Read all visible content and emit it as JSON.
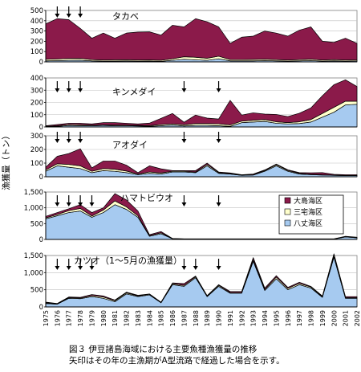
{
  "ylabel": "漁獲量（トン）",
  "years": [
    "1975",
    "1976",
    "1977",
    "1978",
    "1979",
    "1980",
    "1981",
    "1982",
    "1983",
    "1984",
    "1985",
    "1986",
    "1987",
    "1988",
    "1989",
    "1990",
    "1991",
    "1992",
    "1993",
    "1994",
    "1995",
    "1996",
    "1997",
    "1998",
    "1999",
    "2000",
    "2001",
    "2002"
  ],
  "legend": [
    {
      "name": "大島海区",
      "color": "#8B1A4A"
    },
    {
      "name": "三宅海区",
      "color": "#FFFFCC"
    },
    {
      "name": "八丈海区",
      "color": "#A6CAF0"
    }
  ],
  "caption": {
    "line1": "図３ 伊豆諸島海域における主要魚種漁獲量の推移",
    "line2": "矢印はその年の主漁期がA型流路で経過した場合を示す。"
  },
  "chart_data": [
    {
      "type": "area",
      "stacked": true,
      "title": "タカベ",
      "ylim": [
        0,
        500
      ],
      "yticks": [
        0,
        100,
        200,
        300,
        400,
        500
      ],
      "arrows": [
        "1976",
        "1977",
        "1978"
      ],
      "series": [
        {
          "name": "八丈海区",
          "values": [
            10,
            12,
            14,
            15,
            10,
            8,
            8,
            9,
            8,
            9,
            6,
            15,
            25,
            20,
            15,
            30,
            10,
            10,
            10,
            12,
            10,
            8,
            10,
            12,
            8,
            10,
            8,
            10
          ]
        },
        {
          "name": "三宅海区",
          "values": [
            15,
            16,
            18,
            18,
            12,
            10,
            12,
            12,
            10,
            10,
            10,
            15,
            25,
            25,
            20,
            25,
            12,
            12,
            14,
            14,
            12,
            10,
            12,
            14,
            10,
            12,
            10,
            10
          ]
        },
        {
          "name": "大島海区",
          "values": [
            345,
            392,
            378,
            292,
            208,
            262,
            210,
            259,
            272,
            273,
            244,
            326,
            290,
            375,
            355,
            285,
            158,
            218,
            226,
            274,
            258,
            232,
            286,
            314,
            182,
            168,
            212,
            160
          ]
        }
      ]
    },
    {
      "type": "area",
      "stacked": true,
      "title": "キンメダイ",
      "ylim": [
        0,
        400
      ],
      "yticks": [
        0,
        100,
        200,
        300,
        400
      ],
      "arrows": [
        "1976",
        "1977",
        "1978",
        "1987",
        "1990"
      ],
      "series": [
        {
          "name": "八丈海区",
          "values": [
            2,
            5,
            12,
            10,
            10,
            12,
            10,
            10,
            8,
            6,
            10,
            15,
            8,
            12,
            12,
            10,
            5,
            35,
            40,
            45,
            30,
            25,
            28,
            40,
            80,
            120,
            180,
            185
          ]
        },
        {
          "name": "三宅海区",
          "values": [
            3,
            5,
            8,
            8,
            5,
            5,
            5,
            5,
            5,
            5,
            10,
            10,
            10,
            15,
            15,
            15,
            12,
            12,
            15,
            15,
            12,
            10,
            14,
            20,
            30,
            40,
            30,
            25
          ]
        },
        {
          "name": "大島海区",
          "values": [
            5,
            10,
            10,
            12,
            10,
            18,
            20,
            15,
            12,
            20,
            50,
            85,
            20,
            70,
            45,
            40,
            200,
            50,
            60,
            45,
            60,
            50,
            70,
            95,
            145,
            185,
            175,
            120
          ]
        }
      ]
    },
    {
      "type": "area",
      "stacked": true,
      "title": "アオダイ",
      "ylim": [
        0,
        300
      ],
      "yticks": [
        0,
        100,
        200,
        300
      ],
      "arrows": [
        "1976",
        "1977",
        "1978",
        "1987",
        "1990"
      ],
      "series": [
        {
          "name": "八丈海区",
          "values": [
            40,
            80,
            70,
            60,
            30,
            45,
            40,
            30,
            15,
            25,
            20,
            35,
            35,
            30,
            80,
            25,
            20,
            10,
            12,
            40,
            80,
            40,
            20,
            15,
            12,
            10,
            8,
            8
          ]
        },
        {
          "name": "三宅海区",
          "values": [
            10,
            15,
            20,
            20,
            10,
            15,
            15,
            12,
            5,
            10,
            8,
            5,
            5,
            5,
            10,
            5,
            3,
            2,
            3,
            5,
            8,
            6,
            5,
            4,
            3,
            3,
            2,
            2
          ]
        },
        {
          "name": "大島海区",
          "values": [
            20,
            55,
            80,
            125,
            25,
            55,
            60,
            43,
            10,
            45,
            30,
            5,
            5,
            10,
            10,
            5,
            5,
            3,
            5,
            5,
            5,
            5,
            5,
            10,
            15,
            5,
            5,
            5
          ]
        }
      ]
    },
    {
      "type": "area",
      "stacked": true,
      "title": "ハマトビウオ",
      "ylim": [
        0,
        1500
      ],
      "yticks": [
        0,
        500,
        1000,
        1500
      ],
      "yticklabels": [
        "0",
        "500",
        "1,000",
        "1,500"
      ],
      "arrows": [
        "1976",
        "1977",
        "1978",
        "1979",
        "1987",
        "1990"
      ],
      "series": [
        {
          "name": "八丈海区",
          "values": [
            650,
            750,
            850,
            900,
            700,
            850,
            1100,
            950,
            700,
            100,
            180,
            20,
            10,
            10,
            10,
            10,
            10,
            10,
            10,
            10,
            10,
            10,
            10,
            10,
            10,
            10,
            80,
            50
          ]
        },
        {
          "name": "三宅海区",
          "values": [
            30,
            40,
            60,
            80,
            40,
            80,
            120,
            80,
            50,
            20,
            30,
            5,
            5,
            5,
            5,
            5,
            5,
            5,
            5,
            5,
            5,
            5,
            5,
            5,
            5,
            5,
            10,
            10
          ]
        },
        {
          "name": "大島海区",
          "values": [
            50,
            60,
            60,
            120,
            110,
            70,
            230,
            220,
            150,
            30,
            40,
            5,
            5,
            5,
            5,
            5,
            5,
            5,
            5,
            5,
            5,
            5,
            5,
            5,
            5,
            5,
            10,
            10
          ]
        }
      ]
    },
    {
      "type": "area",
      "stacked": true,
      "title": "カツオ（1～5月の漁獲量）",
      "ylim": [
        0,
        1500
      ],
      "yticks": [
        0,
        500,
        1000,
        1500
      ],
      "yticklabels": [
        "0",
        "500",
        "1,000",
        "1,500"
      ],
      "arrows": [
        "1976",
        "1977",
        "1978",
        "1979",
        "1987",
        "1988",
        "1990"
      ],
      "series": [
        {
          "name": "八丈海区",
          "values": [
            100,
            80,
            250,
            240,
            300,
            250,
            150,
            380,
            300,
            350,
            120,
            650,
            600,
            850,
            300,
            600,
            400,
            400,
            1330,
            480,
            820,
            500,
            650,
            550,
            280,
            1450,
            250,
            250
          ]
        },
        {
          "name": "三宅海区",
          "values": [
            20,
            10,
            20,
            20,
            30,
            40,
            30,
            30,
            20,
            20,
            10,
            30,
            30,
            30,
            20,
            30,
            20,
            20,
            50,
            30,
            50,
            40,
            40,
            30,
            20,
            60,
            20,
            20
          ]
        },
        {
          "name": "大島海区",
          "values": [
            20,
            10,
            20,
            20,
            30,
            30,
            20,
            20,
            20,
            10,
            10,
            20,
            50,
            20,
            10,
            20,
            30,
            30,
            60,
            40,
            40,
            30,
            30,
            20,
            20,
            40,
            30,
            30
          ]
        }
      ]
    }
  ]
}
